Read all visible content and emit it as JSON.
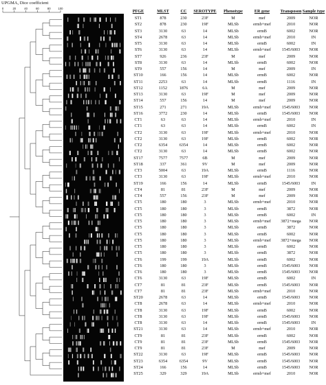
{
  "title": "UPGMA, Dice coefficient",
  "scale_ticks": [
    "0",
    "20",
    "40",
    "60",
    "80",
    "100"
  ],
  "columns": [
    {
      "key": "pfge",
      "label": "PFGE"
    },
    {
      "key": "mlst",
      "label": "MLST"
    },
    {
      "key": "cc",
      "label": "CC"
    },
    {
      "key": "serotype",
      "label": "SEROTYPE"
    },
    {
      "key": "phenotype",
      "label": "Phenotype"
    },
    {
      "key": "er_gene",
      "label": "ER gene"
    },
    {
      "key": "transposon",
      "label": "Transposon"
    },
    {
      "key": "sample_type",
      "label": "Sample type"
    }
  ],
  "rows": [
    [
      "ST1",
      "878",
      "230",
      "23F",
      "M",
      "mef",
      "2009",
      "NOR"
    ],
    [
      "ST2",
      "878",
      "230",
      "19F",
      "MLSb",
      "ermb+mef",
      "2010",
      "NOR"
    ],
    [
      "ST3",
      "3130",
      "63",
      "14",
      "MLSb",
      "ermB",
      "6002",
      "NOR"
    ],
    [
      "ST4",
      "2678",
      "63",
      "14",
      "MLSb",
      "ermb+mef",
      "2010",
      "IN"
    ],
    [
      "ST5",
      "3130",
      "63",
      "14",
      "MLSb",
      "ermB",
      "6002",
      "IN"
    ],
    [
      "ST6",
      "3130",
      "63",
      "14",
      "MLSb",
      "ermb+mef",
      "1545/6003",
      "NOR"
    ],
    [
      "ST7",
      "926",
      "236",
      "23F",
      "M",
      "mef",
      "2009",
      "NOR"
    ],
    [
      "ST8",
      "3130",
      "63",
      "14",
      "MLSb",
      "ermB",
      "6002",
      "NOR"
    ],
    [
      "ST9",
      "557",
      "156",
      "14",
      "M",
      "mef",
      "2009",
      "IN"
    ],
    [
      "ST10",
      "166",
      "156",
      "14",
      "MLSb",
      "ermB",
      "6002",
      "NOR"
    ],
    [
      "ST11",
      "2253",
      "63",
      "14",
      "MLSb",
      "ermB",
      "1116",
      "IN"
    ],
    [
      "ST12",
      "1152",
      "1876",
      "6A",
      "M",
      "mef",
      "2009",
      "NOR"
    ],
    [
      "ST13",
      "3130",
      "63",
      "19F",
      "M",
      "mef",
      "2009",
      "NOR"
    ],
    [
      "ST14",
      "557",
      "156",
      "14",
      "M",
      "mef",
      "2009",
      "NOR"
    ],
    [
      "ST15",
      "271",
      "271",
      "19A",
      "MLSb",
      "ermb+mef",
      "1545/6003",
      "NOR"
    ],
    [
      "ST16",
      "3772",
      "230",
      "14",
      "MLSb",
      "ermB",
      "1545/6003",
      "NOR"
    ],
    [
      "CT1",
      "63",
      "63",
      "14",
      "MLSb",
      "ermb+mef",
      "2010",
      "IN"
    ],
    [
      "CT1",
      "63",
      "63",
      "14",
      "MLSb",
      "ermB",
      "6002",
      "IN"
    ],
    [
      "CT2",
      "3130",
      "63",
      "19F",
      "MLSb",
      "ermb+mef",
      "2010",
      "NOR"
    ],
    [
      "CT2",
      "3130",
      "63",
      "19F",
      "MLSb",
      "ermB",
      "6002",
      "NOR"
    ],
    [
      "CT2",
      "6354",
      "6354",
      "14",
      "MLSb",
      "ermB",
      "6002",
      "NOR"
    ],
    [
      "CT2",
      "3130",
      "63",
      "14",
      "MLSb",
      "ermB",
      "6002",
      "NOR"
    ],
    [
      "ST17",
      "7577",
      "7577",
      "6B",
      "M",
      "mef",
      "2009",
      "NOR"
    ],
    [
      "ST18",
      "337",
      "361",
      "9V",
      "M",
      "mef",
      "2009",
      "NOR"
    ],
    [
      "CT3",
      "5004",
      "63",
      "19A",
      "MLSb",
      "ermB",
      "1116",
      "NOR"
    ],
    [
      "CT3",
      "3130",
      "63",
      "19F",
      "MLSb",
      "ermb+mef",
      "2010",
      "NOR"
    ],
    [
      "ST19",
      "166",
      "156",
      "14",
      "MLSb",
      "ermB",
      "1545/6003",
      "IN"
    ],
    [
      "CT4",
      "81",
      "81",
      "23F",
      "M",
      "mef",
      "2009",
      "NOR"
    ],
    [
      "CT4",
      "557",
      "156",
      "23F",
      "M",
      "mef",
      "2009",
      "NOR"
    ],
    [
      "CT5",
      "180",
      "180",
      "3",
      "MLSb",
      "ermb+mef",
      "2010",
      "NOR"
    ],
    [
      "CT5",
      "180",
      "180",
      "3",
      "MLSb",
      "ermB",
      "3872",
      "NOR"
    ],
    [
      "CT5",
      "180",
      "180",
      "3",
      "MLSb",
      "ermB",
      "6002",
      "IN"
    ],
    [
      "CT5",
      "180",
      "180",
      "3",
      "MLSb",
      "ermb+mef",
      "3872+mega",
      "NOR"
    ],
    [
      "CT5",
      "180",
      "180",
      "3",
      "MLSb",
      "ermB",
      "3872",
      "NOR"
    ],
    [
      "CT5",
      "180",
      "180",
      "3",
      "MLSb",
      "ermB",
      "6002",
      "NOR"
    ],
    [
      "CT5",
      "180",
      "180",
      "3",
      "MLSb",
      "ermb+mef",
      "3872+mega",
      "NOR"
    ],
    [
      "CT5",
      "180",
      "180",
      "3",
      "MLSb",
      "ermB",
      "6002",
      "NOR"
    ],
    [
      "CT5",
      "180",
      "180",
      "3",
      "MLSb",
      "ermB",
      "3872",
      "NOR"
    ],
    [
      "CT6",
      "199",
      "199",
      "19A",
      "MLSb",
      "ermB",
      "6002",
      "NOR"
    ],
    [
      "CT6",
      "180",
      "180",
      "3",
      "MLSb",
      "ermB",
      "1545/6003",
      "NOR"
    ],
    [
      "CT6",
      "180",
      "180",
      "3",
      "MLSb",
      "ermB",
      "1545/6003",
      "NOR"
    ],
    [
      "CT6",
      "3130",
      "63",
      "19F",
      "MLSb",
      "ermB",
      "6002",
      "IN"
    ],
    [
      "CT7",
      "81",
      "81",
      "23F",
      "MLSb",
      "ermB",
      "1545/6003",
      "NOR"
    ],
    [
      "CT7",
      "81",
      "81",
      "23F",
      "MLSb",
      "ermb+mef",
      "2010",
      "NOR"
    ],
    [
      "ST20",
      "2678",
      "63",
      "14",
      "MLSb",
      "ermB",
      "1545/6003",
      "NOR"
    ],
    [
      "CT8",
      "2678",
      "63",
      "14",
      "MLSb",
      "ermb+mef",
      "2010",
      "NOR"
    ],
    [
      "CT8",
      "3130",
      "63",
      "19F",
      "MLSb",
      "ermB",
      "6002",
      "NOR"
    ],
    [
      "CT8",
      "3130",
      "63",
      "19F",
      "MLSb",
      "ermB",
      "1545/6003",
      "NOR"
    ],
    [
      "CT8",
      "3130",
      "63",
      "14",
      "MLSb",
      "ermB",
      "1545/6003",
      "IN"
    ],
    [
      "ST21",
      "3130",
      "63",
      "14",
      "MLSb",
      "ermb+mef",
      "2010",
      "NOR"
    ],
    [
      "CT9",
      "81",
      "81",
      "23F",
      "MLSb",
      "ermB",
      "6002",
      "NOR"
    ],
    [
      "CT9",
      "81",
      "81",
      "23F",
      "MLSb",
      "ermB",
      "1545/6003",
      "NOR"
    ],
    [
      "CT9",
      "81",
      "81",
      "23F",
      "M",
      "mef",
      "2009",
      "NOR"
    ],
    [
      "ST22",
      "3130",
      "63",
      "19F",
      "MLSb",
      "ermB",
      "1545/6003",
      "NOR"
    ],
    [
      "ST23",
      "6354",
      "6354",
      "9V",
      "MLSb",
      "ermB",
      "1545/6003",
      "NOR"
    ],
    [
      "ST24",
      "166",
      "156",
      "14",
      "MLSb",
      "ermB",
      "1545/6003",
      "NOR"
    ],
    [
      "ST25",
      "329",
      "329",
      "19A",
      "MLSb",
      "ermb+mef",
      "2010",
      "NOR"
    ]
  ]
}
